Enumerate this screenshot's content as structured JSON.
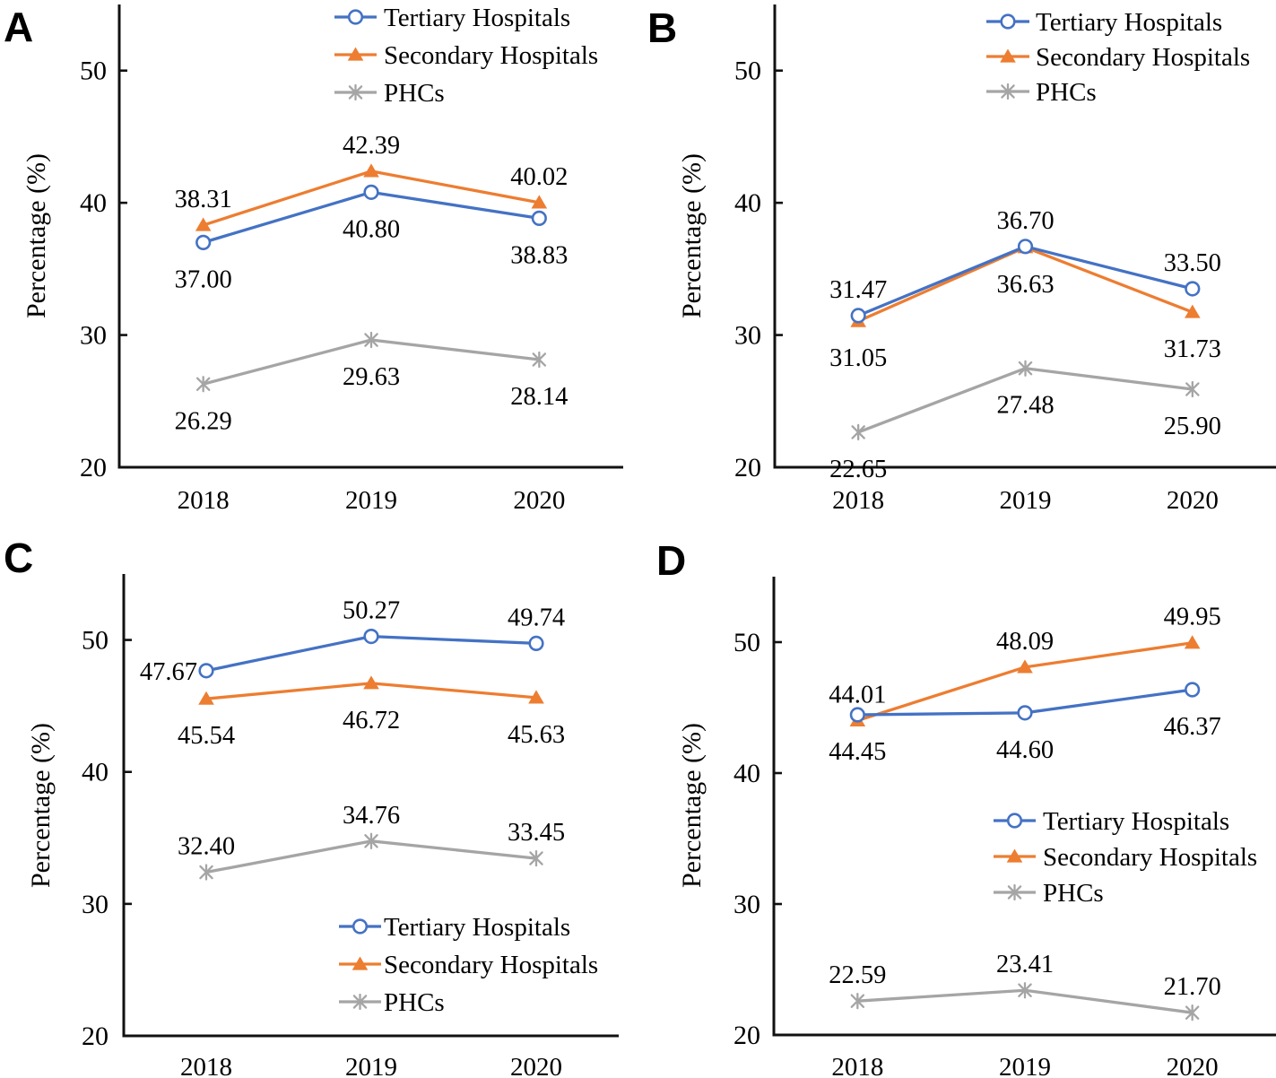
{
  "figure": {
    "ylabel": "Percentage (%)",
    "categories": [
      "2018",
      "2019",
      "2020"
    ],
    "yticks": [
      "20",
      "30",
      "40",
      "50"
    ],
    "legend_labels": [
      "Tertiary Hospitals",
      "Secondary Hospitals",
      "PHCs"
    ],
    "colors": {
      "tertiary": "#4472C4",
      "secondary": "#ED7D31",
      "phc": "#A5A5A5",
      "axis": "#111111",
      "text": "#000000"
    },
    "markers": {
      "tertiary": "open-circle-marker",
      "secondary": "filled-triangle-marker",
      "phc": "asterisk-marker"
    }
  },
  "chart_data": [
    {
      "id": "A",
      "panel_label": "A",
      "type": "line",
      "title": "",
      "xlabel": "",
      "ylabel": "Percentage (%)",
      "categories": [
        "2018",
        "2019",
        "2020"
      ],
      "ylim": [
        20,
        55
      ],
      "yticks": [
        20,
        30,
        40,
        50
      ],
      "grid": false,
      "legend_position": "top-right-inside",
      "series": [
        {
          "name": "Tertiary Hospitals",
          "color": "#4472C4",
          "marker": "open-circle",
          "values": [
            37.0,
            40.8,
            38.83
          ],
          "data_labels": [
            "37.00",
            "40.80",
            "38.83"
          ],
          "label_side": "below"
        },
        {
          "name": "Secondary Hospitals",
          "color": "#ED7D31",
          "marker": "filled-triangle",
          "values": [
            38.31,
            42.39,
            40.02
          ],
          "data_labels": [
            "38.31",
            "42.39",
            "40.02"
          ],
          "label_side": "above"
        },
        {
          "name": "PHCs",
          "color": "#A5A5A5",
          "marker": "asterisk",
          "values": [
            26.29,
            29.63,
            28.14
          ],
          "data_labels": [
            "26.29",
            "29.63",
            "28.14"
          ],
          "label_side": "below"
        }
      ]
    },
    {
      "id": "B",
      "panel_label": "B",
      "type": "line",
      "title": "",
      "xlabel": "",
      "ylabel": "Percentage (%)",
      "categories": [
        "2018",
        "2019",
        "2020"
      ],
      "ylim": [
        20,
        55
      ],
      "yticks": [
        20,
        30,
        40,
        50
      ],
      "grid": false,
      "legend_position": "top-right-inside",
      "series": [
        {
          "name": "Tertiary Hospitals",
          "color": "#4472C4",
          "marker": "open-circle",
          "values": [
            31.47,
            36.7,
            33.5
          ],
          "data_labels": [
            "31.47",
            "36.70",
            "33.50"
          ],
          "label_side": "above"
        },
        {
          "name": "Secondary Hospitals",
          "color": "#ED7D31",
          "marker": "filled-triangle",
          "values": [
            31.05,
            36.63,
            31.73
          ],
          "data_labels": [
            "31.05",
            "36.63",
            "31.73"
          ],
          "label_side": "below"
        },
        {
          "name": "PHCs",
          "color": "#A5A5A5",
          "marker": "asterisk",
          "values": [
            22.65,
            27.48,
            25.9
          ],
          "data_labels": [
            "22.65",
            "27.48",
            "25.90"
          ],
          "label_side": "below"
        }
      ]
    },
    {
      "id": "C",
      "panel_label": "C",
      "type": "line",
      "title": "",
      "xlabel": "",
      "ylabel": "Percentage (%)",
      "categories": [
        "2018",
        "2019",
        "2020"
      ],
      "ylim": [
        20,
        55
      ],
      "yticks": [
        20,
        30,
        40,
        50
      ],
      "grid": false,
      "legend_position": "lower-right-inside",
      "series": [
        {
          "name": "Tertiary Hospitals",
          "color": "#4472C4",
          "marker": "open-circle",
          "values": [
            47.67,
            50.27,
            49.74
          ],
          "data_labels": [
            "47.67",
            "50.27",
            "49.74"
          ],
          "label_side": "above"
        },
        {
          "name": "Secondary Hospitals",
          "color": "#ED7D31",
          "marker": "filled-triangle",
          "values": [
            45.54,
            46.72,
            45.63
          ],
          "data_labels": [
            "45.54",
            "46.72",
            "45.63"
          ],
          "label_side": "below"
        },
        {
          "name": "PHCs",
          "color": "#A5A5A5",
          "marker": "asterisk",
          "values": [
            32.4,
            34.76,
            33.45
          ],
          "data_labels": [
            "32.40",
            "34.76",
            "33.45"
          ],
          "label_side": "above"
        }
      ]
    },
    {
      "id": "D",
      "panel_label": "D",
      "type": "line",
      "title": "",
      "xlabel": "",
      "ylabel": "Percentage (%)",
      "categories": [
        "2018",
        "2019",
        "2020"
      ],
      "ylim": [
        20,
        55
      ],
      "yticks": [
        20,
        30,
        40,
        50
      ],
      "grid": false,
      "legend_position": "mid-right-inside",
      "series": [
        {
          "name": "Tertiary Hospitals",
          "color": "#4472C4",
          "marker": "open-circle",
          "values": [
            44.45,
            44.6,
            46.37
          ],
          "data_labels": [
            "44.45",
            "44.60",
            "46.37"
          ],
          "label_side": "below"
        },
        {
          "name": "Secondary Hospitals",
          "color": "#ED7D31",
          "marker": "filled-triangle",
          "values": [
            44.01,
            48.09,
            49.95
          ],
          "data_labels": [
            "44.01",
            "48.09",
            "49.95"
          ],
          "label_side": "above"
        },
        {
          "name": "PHCs",
          "color": "#A5A5A5",
          "marker": "asterisk",
          "values": [
            22.59,
            23.41,
            21.7
          ],
          "data_labels": [
            "22.59",
            "23.41",
            "21.70"
          ],
          "label_side": "above"
        }
      ]
    }
  ]
}
